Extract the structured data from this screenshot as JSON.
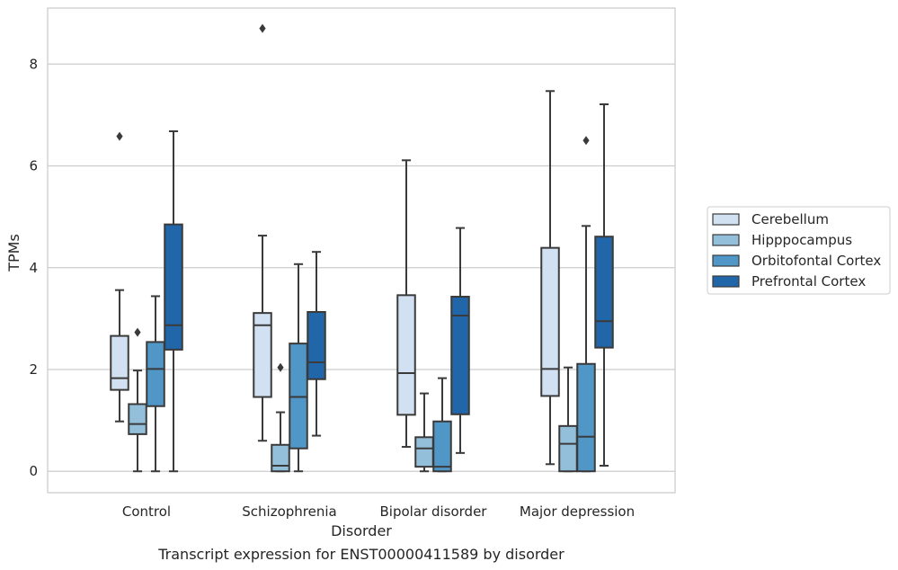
{
  "caption": "Transcript expression for ENST00000411589 by disorder",
  "chart_data": {
    "type": "boxplot",
    "xlabel": "Disorder",
    "ylabel": "TPMs",
    "ylim": [
      -0.42,
      9.1
    ],
    "yticks": [
      0,
      2,
      4,
      6,
      8
    ],
    "grid": "horizontal",
    "legend_position": "right",
    "categories": [
      "Control",
      "Schizophrenia",
      "Bipolar disorder",
      "Major depression"
    ],
    "series": [
      {
        "name": "Cerebellum",
        "color": "#d1e1f1",
        "boxes": [
          {
            "whisker_low": 0.98,
            "q1": 1.6,
            "median": 1.83,
            "q3": 2.66,
            "whisker_high": 3.56,
            "outliers": [
              6.58
            ]
          },
          {
            "whisker_low": 0.6,
            "q1": 1.46,
            "median": 2.87,
            "q3": 3.11,
            "whisker_high": 4.63,
            "outliers": [
              8.7
            ]
          },
          {
            "whisker_low": 0.48,
            "q1": 1.11,
            "median": 1.93,
            "q3": 3.46,
            "whisker_high": 6.11,
            "outliers": []
          },
          {
            "whisker_low": 0.14,
            "q1": 1.48,
            "median": 2.01,
            "q3": 4.39,
            "whisker_high": 7.47,
            "outliers": []
          }
        ]
      },
      {
        "name": "Hipppocampus",
        "color": "#93bfdb",
        "boxes": [
          {
            "whisker_low": 0.0,
            "q1": 0.73,
            "median": 0.93,
            "q3": 1.32,
            "whisker_high": 1.98,
            "outliers": [
              2.73
            ]
          },
          {
            "whisker_low": 0.0,
            "q1": 0.0,
            "median": 0.11,
            "q3": 0.52,
            "whisker_high": 1.16,
            "outliers": [
              2.04
            ]
          },
          {
            "whisker_low": 0.0,
            "q1": 0.09,
            "median": 0.45,
            "q3": 0.67,
            "whisker_high": 1.53,
            "outliers": []
          },
          {
            "whisker_low": 0.0,
            "q1": 0.0,
            "median": 0.54,
            "q3": 0.89,
            "whisker_high": 2.04,
            "outliers": []
          }
        ]
      },
      {
        "name": "Orbitofontal Cortex",
        "color": "#5097c8",
        "boxes": [
          {
            "whisker_low": 0.0,
            "q1": 1.28,
            "median": 2.01,
            "q3": 2.54,
            "whisker_high": 3.44,
            "outliers": []
          },
          {
            "whisker_low": 0.0,
            "q1": 0.45,
            "median": 1.46,
            "q3": 2.51,
            "whisker_high": 4.07,
            "outliers": []
          },
          {
            "whisker_low": 0.0,
            "q1": 0.0,
            "median": 0.09,
            "q3": 0.98,
            "whisker_high": 1.83,
            "outliers": []
          },
          {
            "whisker_low": 0.0,
            "q1": 0.0,
            "median": 0.68,
            "q3": 2.11,
            "whisker_high": 4.82,
            "outliers": [
              6.5
            ]
          }
        ]
      },
      {
        "name": "Prefrontal Cortex",
        "color": "#2166a8",
        "boxes": [
          {
            "whisker_low": 0.0,
            "q1": 2.39,
            "median": 2.87,
            "q3": 4.85,
            "whisker_high": 6.68,
            "outliers": []
          },
          {
            "whisker_low": 0.7,
            "q1": 1.81,
            "median": 2.14,
            "q3": 3.13,
            "whisker_high": 4.31,
            "outliers": []
          },
          {
            "whisker_low": 0.36,
            "q1": 1.12,
            "median": 3.06,
            "q3": 3.43,
            "whisker_high": 4.78,
            "outliers": []
          },
          {
            "whisker_low": 0.11,
            "q1": 2.43,
            "median": 2.95,
            "q3": 4.61,
            "whisker_high": 7.21,
            "outliers": []
          }
        ]
      }
    ]
  }
}
